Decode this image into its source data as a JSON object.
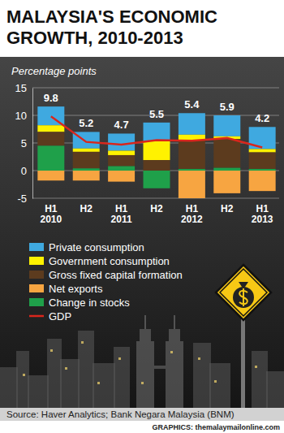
{
  "chart_data": {
    "type": "bar",
    "title": "MALAYSIA'S ECONOMIC GROWTH, 2010-2013",
    "y_label": "Percentage points",
    "categories": [
      "H1 2010",
      "H2",
      "H1 2011",
      "H2",
      "H1 2012",
      "H2",
      "H1 2013"
    ],
    "stacked": true,
    "grid": true,
    "ylim": [
      -5,
      15
    ],
    "yticks": [
      -5,
      0,
      5,
      10,
      15
    ],
    "series": [
      {
        "name": "Private consumption",
        "color": "#3fa9e0",
        "values": [
          3.4,
          3.0,
          3.1,
          3.4,
          3.9,
          3.8,
          4.0
        ]
      },
      {
        "name": "Government consumption",
        "color": "#fff200",
        "values": [
          1.2,
          0.6,
          0.8,
          3.4,
          1.0,
          0.5,
          0.6
        ]
      },
      {
        "name": "Gross fixed capital formation",
        "color": "#5c3b1e",
        "values": [
          2.5,
          3.0,
          2.0,
          1.9,
          5.2,
          5.2,
          3.0
        ]
      },
      {
        "name": "Net exports",
        "color": "#f7a541",
        "values": [
          -1.8,
          -1.8,
          -2.0,
          0,
          -5.0,
          -4.1,
          -3.7
        ]
      },
      {
        "name": "Change in stocks",
        "color": "#1fa04a",
        "values": [
          4.5,
          0.4,
          0.8,
          -3.2,
          0.3,
          0.5,
          0.3
        ]
      },
      {
        "name": "GDP",
        "color": "#d9261c",
        "type": "line",
        "data_labels": true,
        "values": [
          9.8,
          5.2,
          4.7,
          5.5,
          5.4,
          5.9,
          4.2
        ]
      }
    ],
    "source": "Source: Haver Analytics; Bank Negara Malaysia (BNM)",
    "credit": "GRAPHICS: themalaymailonline.com"
  }
}
